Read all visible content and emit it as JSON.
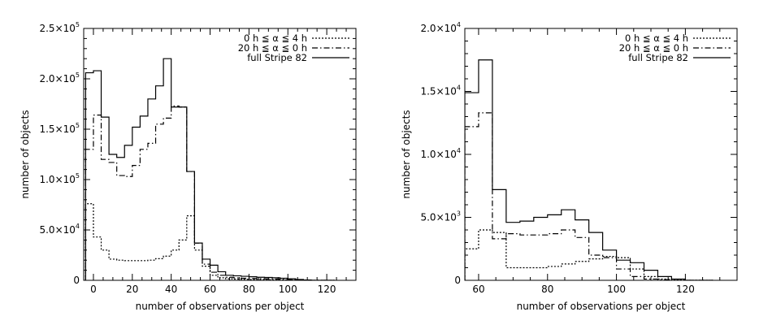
{
  "chart_data": [
    {
      "type": "histogram-step",
      "xlabel": "number of observations per object",
      "ylabel": "number of objects",
      "xlim": [
        -5,
        135
      ],
      "ylim": [
        0,
        250000
      ],
      "xticks": [
        {
          "v": 0,
          "t": "0"
        },
        {
          "v": 20,
          "t": "20"
        },
        {
          "v": 40,
          "t": "40"
        },
        {
          "v": 60,
          "t": "60"
        },
        {
          "v": 80,
          "t": "80"
        },
        {
          "v": 100,
          "t": "100"
        },
        {
          "v": 120,
          "t": "120"
        }
      ],
      "yticks": [
        {
          "v": 0,
          "m": "0",
          "e": ""
        },
        {
          "v": 50000,
          "m": "5.0×10",
          "e": "4"
        },
        {
          "v": 100000,
          "m": "1.0×10",
          "e": "5"
        },
        {
          "v": 150000,
          "m": "1.5×10",
          "e": "5"
        },
        {
          "v": 200000,
          "m": "2.0×10",
          "e": "5"
        },
        {
          "v": 250000,
          "m": "2.5×10",
          "e": "5"
        }
      ],
      "bin_edges": [
        -4,
        0,
        4,
        8,
        12,
        16,
        20,
        24,
        28,
        32,
        36,
        40,
        44,
        48,
        52,
        56,
        60,
        64,
        68,
        72,
        76,
        80,
        84,
        88,
        92,
        96,
        100,
        104,
        108,
        112,
        116,
        120,
        124
      ],
      "series": [
        {
          "name": "0 h ≦ α ≦ 4 h",
          "dash": "2,2",
          "values": [
            76000,
            43000,
            30000,
            21000,
            20000,
            19500,
            19500,
            19500,
            20000,
            21500,
            24000,
            30000,
            40000,
            64000,
            30000,
            14000,
            5000,
            2500,
            1500,
            1200,
            1000,
            800,
            700,
            600,
            500,
            300,
            200,
            100,
            0,
            0,
            0,
            0
          ]
        },
        {
          "name": "20 h ≦ α ≦ 0 h",
          "dash": "7,3,1.5,3",
          "values": [
            130000,
            164000,
            120000,
            117000,
            104000,
            103000,
            114000,
            130000,
            136000,
            155000,
            161000,
            173000,
            172000,
            108000,
            37000,
            16000,
            8000,
            5000,
            3000,
            2500,
            2000,
            1800,
            1600,
            1400,
            1200,
            900,
            600,
            300,
            100,
            0,
            0,
            0
          ]
        },
        {
          "name": "full Stripe 82",
          "dash": "",
          "values": [
            206000,
            208000,
            162000,
            125000,
            122000,
            134000,
            152000,
            163000,
            180000,
            193000,
            220000,
            172000,
            172000,
            108000,
            37000,
            21000,
            15000,
            8500,
            5000,
            4500,
            4000,
            3500,
            3000,
            2800,
            2500,
            2000,
            1500,
            800,
            300,
            0,
            0,
            0
          ]
        }
      ]
    },
    {
      "type": "histogram-step",
      "xlabel": "number of observations per object",
      "ylabel": "number of objects",
      "xlim": [
        56,
        135
      ],
      "ylim": [
        0,
        20000
      ],
      "xticks": [
        {
          "v": 60,
          "t": "60"
        },
        {
          "v": 80,
          "t": "80"
        },
        {
          "v": 100,
          "t": "100"
        },
        {
          "v": 120,
          "t": "120"
        }
      ],
      "yticks": [
        {
          "v": 0,
          "m": "0",
          "e": ""
        },
        {
          "v": 5000,
          "m": "5.0×10",
          "e": "3"
        },
        {
          "v": 10000,
          "m": "1.0×10",
          "e": "4"
        },
        {
          "v": 15000,
          "m": "1.5×10",
          "e": "4"
        },
        {
          "v": 20000,
          "m": "2.0×10",
          "e": "4"
        }
      ],
      "bin_edges": [
        56,
        60,
        64,
        68,
        72,
        76,
        80,
        84,
        88,
        92,
        96,
        100,
        104,
        108,
        112,
        116,
        120,
        124,
        128
      ],
      "series": [
        {
          "name": "0 h ≦ α ≦ 4 h",
          "dash": "2,2",
          "values": [
            2500,
            4000,
            3800,
            1000,
            1000,
            1000,
            1100,
            1300,
            1500,
            1700,
            1900,
            1800,
            900,
            300,
            100,
            50,
            0,
            0
          ]
        },
        {
          "name": "20 h ≦ α ≦ 0 h",
          "dash": "7,3,1.5,3",
          "values": [
            12200,
            13300,
            3300,
            3700,
            3600,
            3600,
            3700,
            4000,
            3400,
            2000,
            1800,
            900,
            300,
            100,
            50,
            0,
            0,
            0
          ]
        },
        {
          "name": "full Stripe 82",
          "dash": "",
          "values": [
            14900,
            17500,
            7200,
            4600,
            4700,
            5000,
            5200,
            5600,
            4800,
            3800,
            2400,
            1600,
            1400,
            800,
            300,
            100,
            0,
            0
          ]
        }
      ]
    }
  ]
}
